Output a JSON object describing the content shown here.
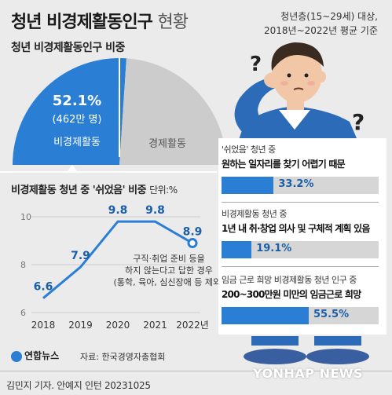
{
  "title": {
    "bold": "청년 비경제활동인구",
    "light": "현황"
  },
  "note": {
    "line1": "청년층(15~29세) 대상,",
    "line2": "2018년~2022년 평균 기준"
  },
  "section_pie": "청년 비경제활동인구 비중",
  "pie": {
    "inactive_pct": "52.1%",
    "inactive_count": "(462만 명)",
    "inactive_label": "비경제활동",
    "active_label": "경제활동",
    "colors": {
      "inactive": "#2a7fd4",
      "active": "#cccccc"
    }
  },
  "section_line": "비경제활동 청년 중 '쉬었음' 비중",
  "unit_label": "단위:%",
  "line_note": {
    "line1": "구직·취업 준비 등을",
    "line2": "하지 않는다고 답한 경우",
    "line3": "(통학, 육아, 심신장애 등 제외)"
  },
  "cards": [
    {
      "caption": "'쉬었음' 청년 중",
      "main": "원하는 일자리를 찾기 어렵기 때문",
      "value": "33.2%",
      "fraction": 0.332
    },
    {
      "caption": "비경제활동 청년 중",
      "main": "1년 내 취·창업 의사 및 구체적 계획 있음",
      "value": "19.1%",
      "fraction": 0.191
    },
    {
      "caption": "임금 근로 희망 비경제활동 청년 인구 중",
      "main": "200~300만원 미만의 임금근로 희망",
      "value": "55.5%",
      "fraction": 0.555
    }
  ],
  "source": "자료: 한국경영자총협회",
  "logo": "연합뉴스",
  "credit": "김민지 기자. 안예지 인턴  20231025",
  "watermark": "YONHAP NEWS",
  "chart_data": [
    {
      "type": "pie",
      "categories": [
        "비경제활동",
        "경제활동"
      ],
      "values": [
        52.1,
        47.9
      ]
    },
    {
      "type": "line",
      "title": "비경제활동 청년 중 '쉬었음' 비중",
      "categories": [
        "2018",
        "2019",
        "2020",
        "2021",
        "2022년"
      ],
      "values": [
        6.6,
        7.9,
        9.8,
        9.8,
        8.9
      ],
      "value_labels": [
        "6.6",
        "7.9",
        "9.8",
        "9.8",
        "8.9"
      ],
      "ylim": [
        6,
        10
      ],
      "yticks": [
        "6",
        "8",
        "10"
      ],
      "grid": true,
      "color": "#2a7fd4"
    }
  ]
}
